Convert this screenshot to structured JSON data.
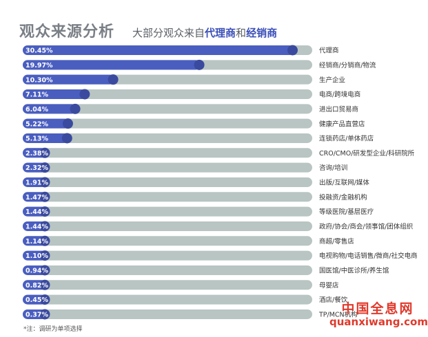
{
  "header": {
    "title": "观众来源分析",
    "subtitle_prefix": "大部分观众来自",
    "subtitle_hl1": "代理商",
    "subtitle_join": "和",
    "subtitle_hl2": "经销商"
  },
  "footnote": "*注：调研为单项选择",
  "watermark": {
    "cn": "中国全息网",
    "en": "quanxiwang.com"
  },
  "colors": {
    "bar_fill": "#4a5ec0",
    "bar_track": "#b8c5c2",
    "marker": "#3a4a9e",
    "label_text": "#ffffff"
  },
  "chart_data": {
    "type": "bar",
    "orientation": "horizontal",
    "grid": false,
    "categories": [
      "代理商",
      "经销商/分销商/物流",
      "生产企业",
      "电商/跨境电商",
      "进出口贸易商",
      "健康产品直营店",
      "连锁药店/单体药店",
      "CRO/CMO/研发型企业/科研院所",
      "咨询/培训",
      "出版/互联网/媒体",
      "投融资/金融机构",
      "等级医院/基层医疗",
      "政府/协会/商会/领事馆/团体组织",
      "商超/零售店",
      "电视购物/电话销售/微商/社交电商",
      "国医馆/中医诊所/养生馆",
      "母婴店",
      "酒店/餐饮",
      "TP/MCN机构"
    ],
    "values": [
      30.45,
      19.97,
      10.3,
      7.11,
      6.04,
      5.22,
      5.13,
      2.38,
      2.32,
      1.91,
      1.47,
      1.44,
      1.44,
      1.14,
      1.1,
      0.94,
      0.82,
      0.45,
      0.37
    ],
    "value_labels": [
      "30.45%",
      "19.97%",
      "10.30%",
      "7.11%",
      "6.04%",
      "5.22%",
      "5.13%",
      "2.38%",
      "2.32%",
      "1.91%",
      "1.47%",
      "1.44%",
      "1.44%",
      "1.14%",
      "1.10%",
      "0.94%",
      "0.82%",
      "0.45%",
      "0.37%"
    ],
    "xlim": [
      0,
      32.5
    ]
  }
}
